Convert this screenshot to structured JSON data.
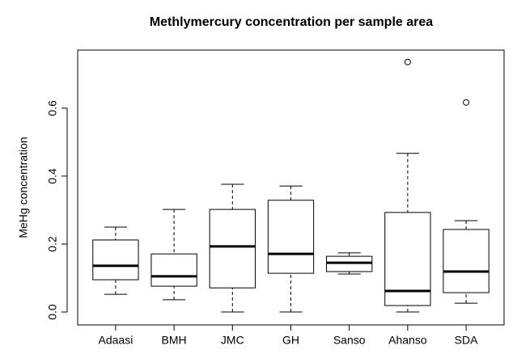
{
  "chart_data": {
    "type": "boxplot",
    "title": "Methlymercury concentration per sample area",
    "ylabel": "MeHg concentration",
    "categories": [
      "Adaasi",
      "BMH",
      "JMC",
      "GH",
      "Sanso",
      "Ahanso",
      "SDA"
    ],
    "boxes": [
      {
        "min": 0.052,
        "q1": 0.095,
        "median": 0.136,
        "q3": 0.212,
        "max": 0.25,
        "outliers": []
      },
      {
        "min": 0.036,
        "q1": 0.076,
        "median": 0.105,
        "q3": 0.171,
        "max": 0.302,
        "outliers": []
      },
      {
        "min": 0,
        "q1": 0.071,
        "median": 0.193,
        "q3": 0.302,
        "max": 0.376,
        "outliers": []
      },
      {
        "min": 0,
        "q1": 0.114,
        "median": 0.171,
        "q3": 0.329,
        "max": 0.371,
        "outliers": []
      },
      {
        "min": 0.112,
        "q1": 0.119,
        "median": 0.145,
        "q3": 0.164,
        "max": 0.174,
        "outliers": []
      },
      {
        "min": 0,
        "q1": 0.019,
        "median": 0.062,
        "q3": 0.293,
        "max": 0.467,
        "outliers": [
          0.736
        ]
      },
      {
        "min": 0.026,
        "q1": 0.057,
        "median": 0.119,
        "q3": 0.243,
        "max": 0.269,
        "outliers": [
          0.617
        ]
      }
    ],
    "color": "#000000",
    "ylim": [
      -0.038,
      0.771
    ],
    "yticks": [
      {
        "value": 0,
        "label": "0.0"
      },
      0.2,
      0.4,
      0.6
    ]
  }
}
